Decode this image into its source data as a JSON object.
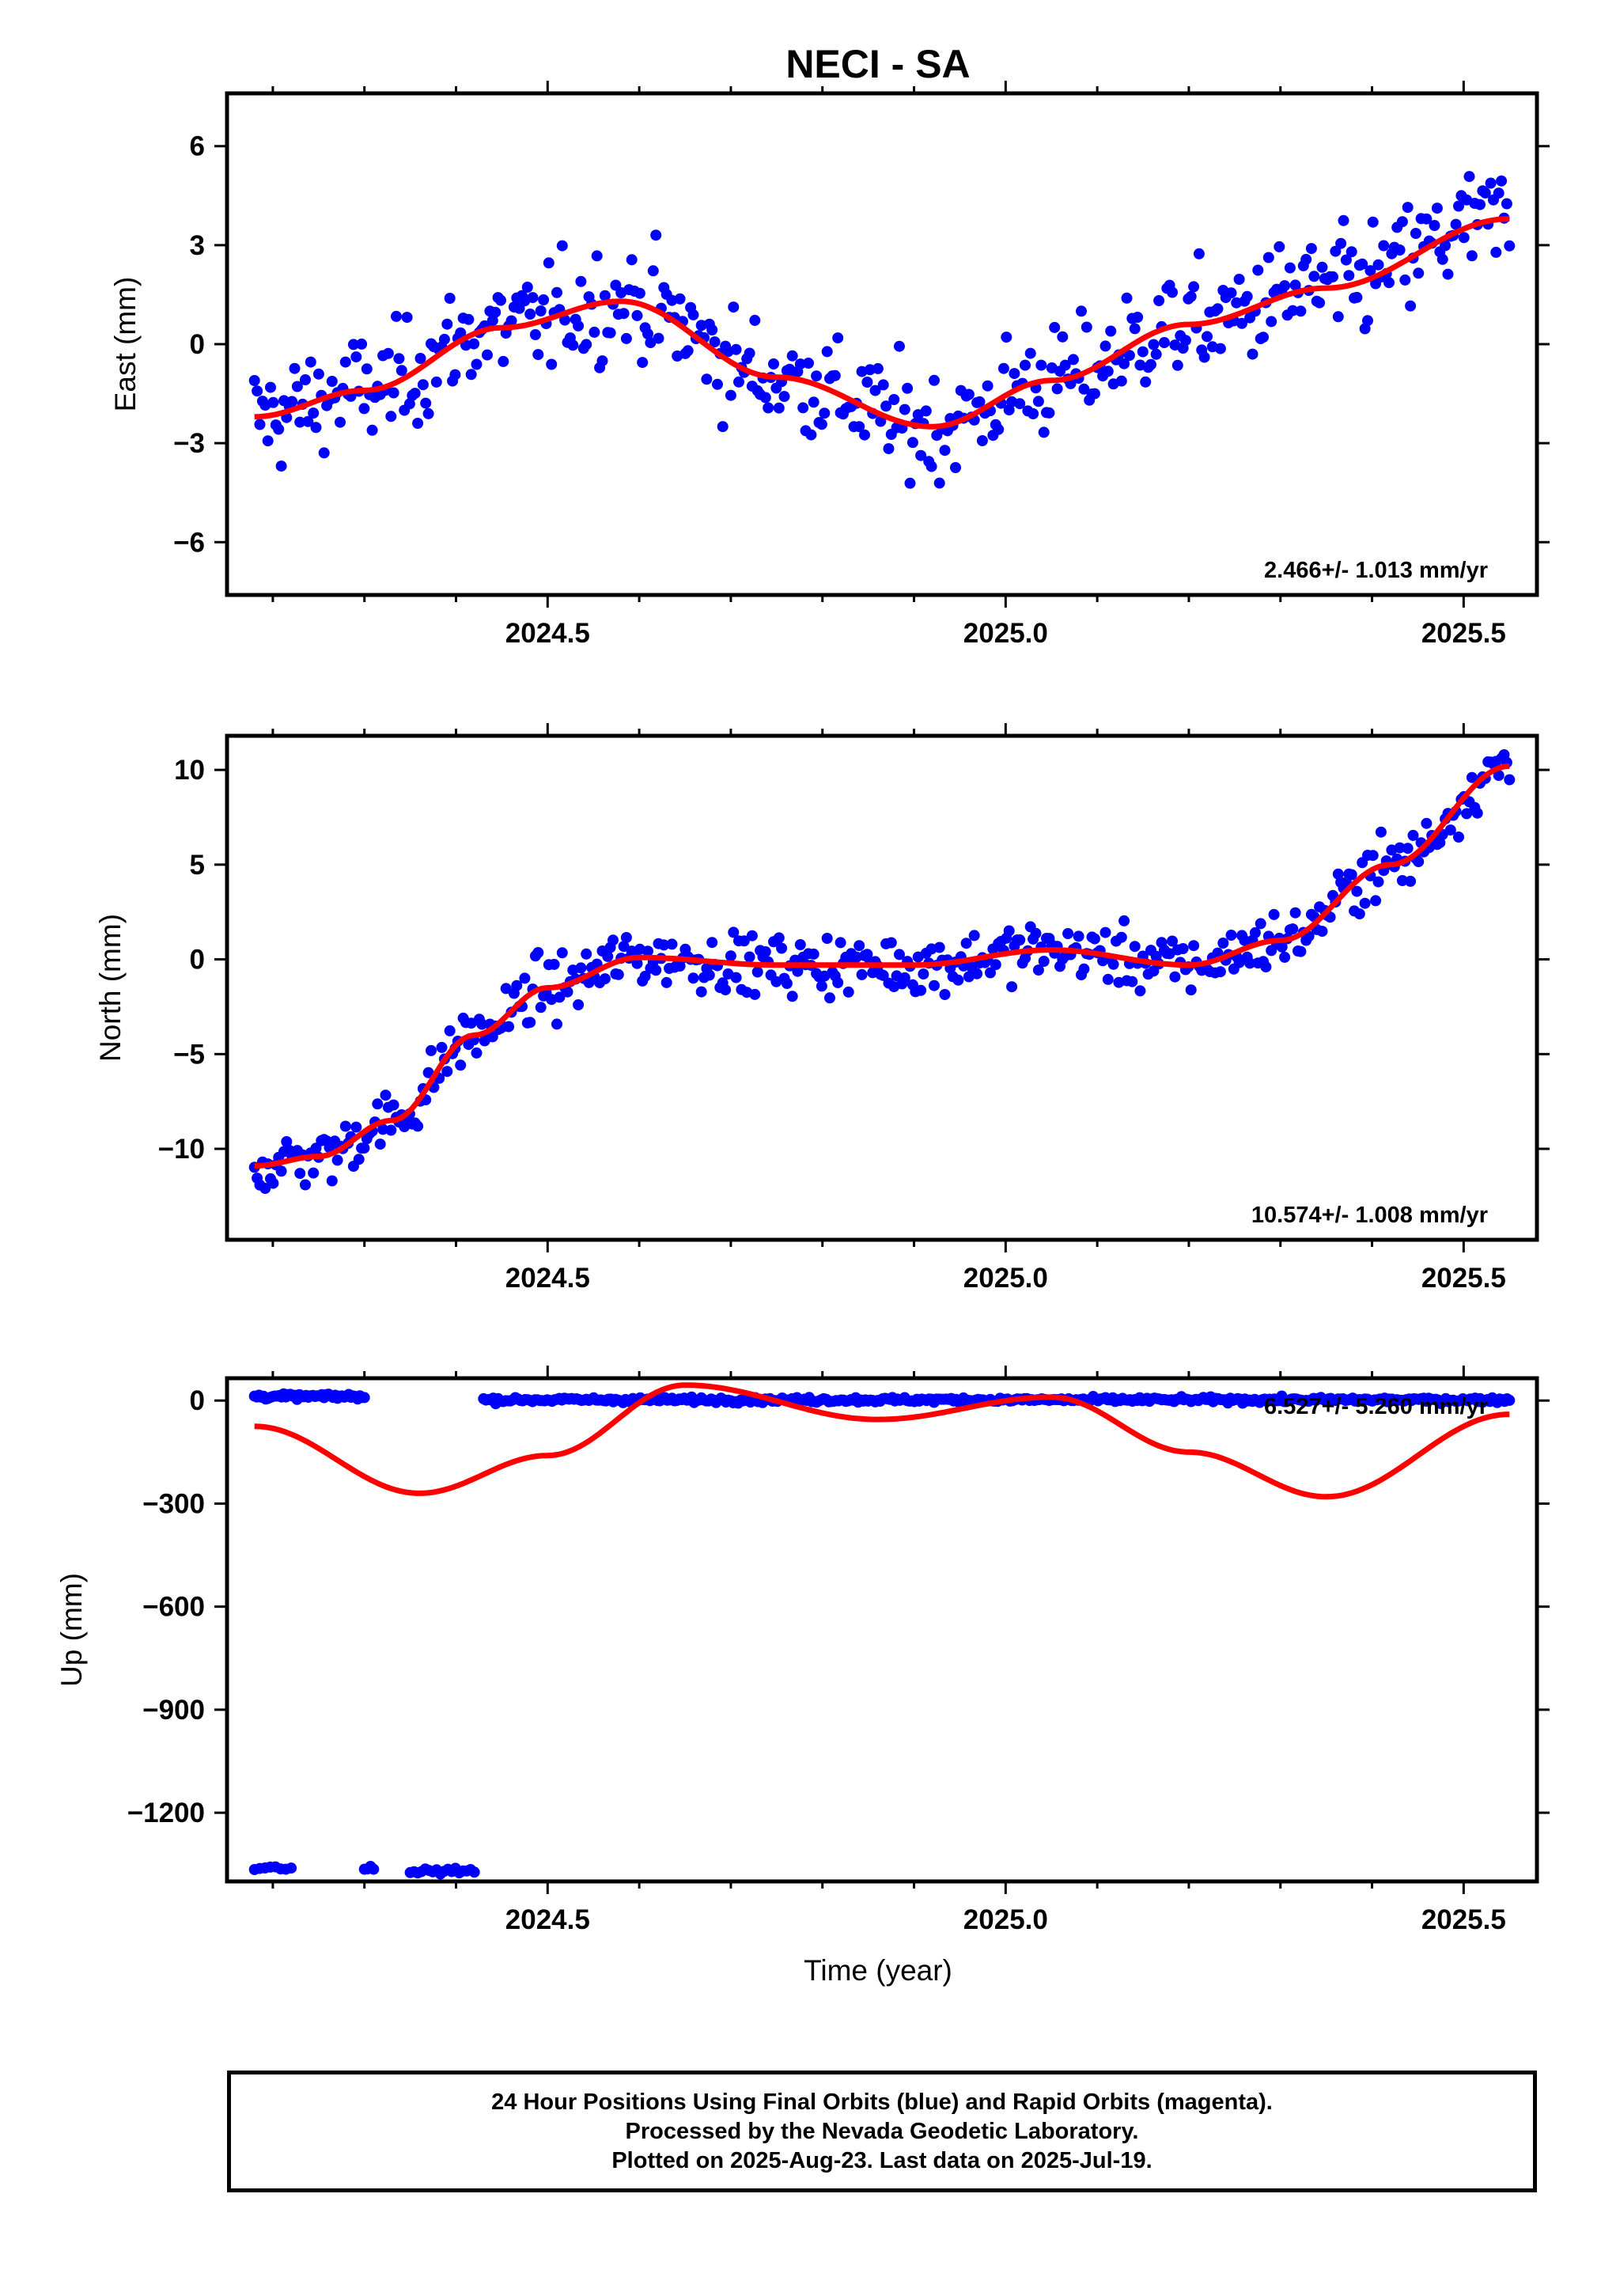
{
  "title": "NECI - SA",
  "xlabel": "Time (year)",
  "x_tick_labels": [
    "2024.5",
    "2025.0",
    "2025.5"
  ],
  "colors": {
    "final_points": "#0000ff",
    "model_curve": "#ff0000",
    "axes": "#000000"
  },
  "footer": {
    "line1": "24 Hour Positions Using Final Orbits (blue) and Rapid Orbits (magenta).",
    "line2": "Processed by the Nevada Geodetic Laboratory.",
    "line3": "Plotted on 2025-Aug-23. Last data on 2025-Jul-19."
  },
  "chart_data": [
    {
      "type": "scatter",
      "panel": "east",
      "ylabel": "East (mm)",
      "rate_text": "2.466+/- 1.013 mm/yr",
      "xlim": [
        2024.15,
        2025.58
      ],
      "ylim": [
        -7.6,
        7.6
      ],
      "yticks": [
        -6,
        -3,
        0,
        3,
        6
      ],
      "y_tick_labels": [
        "−6",
        "−3",
        "0",
        "3",
        "6"
      ],
      "trend": {
        "x": [
          2024.18,
          2024.3,
          2024.45,
          2024.58,
          2024.75,
          2024.92,
          2025.05,
          2025.2,
          2025.35,
          2025.55
        ],
        "y": [
          -2.2,
          -1.4,
          0.5,
          1.3,
          -1.0,
          -2.5,
          -1.1,
          0.6,
          1.7,
          3.8
        ]
      },
      "scatter_count": 470,
      "spread": 1.4
    },
    {
      "type": "scatter",
      "panel": "north",
      "ylabel": "North (mm)",
      "rate_text": "10.574+/- 1.008 mm/yr",
      "xlim": [
        2024.15,
        2025.58
      ],
      "ylim": [
        -14.8,
        11.8
      ],
      "yticks": [
        -10,
        -5,
        0,
        5,
        10
      ],
      "y_tick_labels": [
        "−10",
        "−5",
        "0",
        "5",
        "10"
      ],
      "trend": {
        "x": [
          2024.18,
          2024.25,
          2024.33,
          2024.42,
          2024.5,
          2024.6,
          2024.75,
          2024.9,
          2025.05,
          2025.2,
          2025.3,
          2025.42,
          2025.55
        ],
        "y": [
          -10.9,
          -10.4,
          -8.5,
          -4.0,
          -1.5,
          0.1,
          -0.3,
          -0.3,
          0.5,
          -0.3,
          1.0,
          5.0,
          10.2
        ]
      },
      "scatter_count": 470,
      "spread": 1.3
    },
    {
      "type": "scatter",
      "panel": "up",
      "ylabel": "Up (mm)",
      "rate_text": "6.527+/- 5.260 mm/yr",
      "xlim": [
        2024.15,
        2025.58
      ],
      "ylim": [
        -1400,
        65
      ],
      "yticks": [
        -1200,
        -900,
        -600,
        -300,
        0
      ],
      "y_tick_labels": [
        "−1200",
        "−900",
        "−600",
        "−300",
        "0"
      ],
      "trend": {
        "x": [
          2024.18,
          2024.36,
          2024.5,
          2024.65,
          2024.86,
          2025.05,
          2025.2,
          2025.35,
          2025.55
        ],
        "y": [
          -75,
          -270,
          -160,
          45,
          -55,
          10,
          -150,
          -280,
          -40
        ]
      },
      "scatter_segments": [
        {
          "x_start": 2024.18,
          "x_end": 2024.3,
          "y": 12,
          "count": 50
        },
        {
          "x_start": 2024.43,
          "x_end": 2025.55,
          "y": 2,
          "count": 420
        }
      ],
      "outlier_groups": [
        {
          "x_start": 2024.18,
          "x_end": 2024.22,
          "y": -1360,
          "count": 8
        },
        {
          "x_start": 2024.3,
          "x_end": 2024.31,
          "y": -1362,
          "count": 4
        },
        {
          "x_start": 2024.35,
          "x_end": 2024.42,
          "y": -1370,
          "count": 18
        }
      ]
    }
  ]
}
